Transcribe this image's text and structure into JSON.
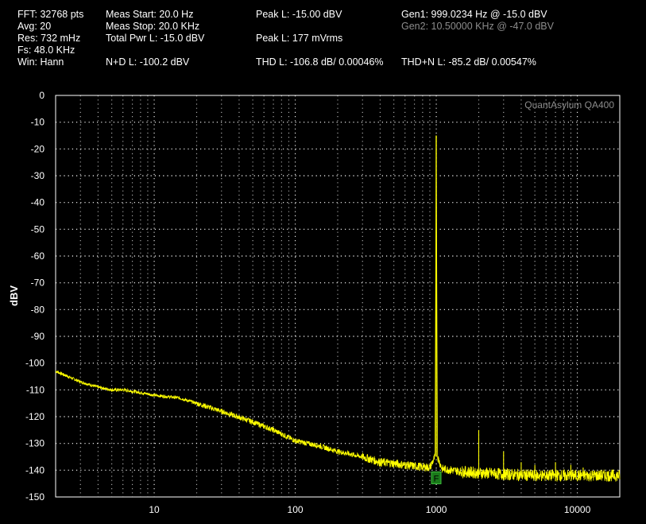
{
  "header": {
    "col1": [
      "FFT: 32768 pts",
      "Avg: 20",
      "Res: 732 mHz",
      "Fs: 48.0 KHz",
      "Win: Hann"
    ],
    "col2": [
      "Meas Start: 20.0 Hz",
      "Meas Stop: 20.0 KHz",
      "Total Pwr L: -15.0 dBV",
      "N+D L: -100.2 dBV"
    ],
    "peak_l_dbv": "Peak L: -15.00 dBV",
    "peak_l_vrms": "Peak L: 177 mVrms",
    "thd": "THD L: -106.8 dB/ 0.00046%",
    "gen1": "Gen1: 999.0234 Hz @ -15.0  dBV",
    "gen2": "Gen2: 10.50000 KHz @ -47.0  dBV",
    "thdn": "THD+N L: -85.2 dB/ 0.00547%"
  },
  "watermark": "QuantAsylum QA400",
  "marker_label": "F",
  "colors": {
    "trace": "#ffff00",
    "grid": "#ffffff",
    "background": "#000000",
    "marker": "#1a7a1a",
    "gen2_text": "#8c8c8c"
  },
  "chart_data": {
    "type": "line",
    "title": "",
    "xlabel": "",
    "ylabel": "dBV",
    "x_scale": "log",
    "xlim": [
      2,
      20000
    ],
    "ylim": [
      -150,
      0
    ],
    "x_ticks": [
      10,
      100,
      1000,
      10000
    ],
    "y_ticks": [
      0,
      -10,
      -20,
      -30,
      -40,
      -50,
      -60,
      -70,
      -80,
      -90,
      -100,
      -110,
      -120,
      -130,
      -140,
      -150
    ],
    "grid": true,
    "series": [
      {
        "x": [
          2,
          3,
          4,
          5,
          6,
          8,
          10,
          15,
          20,
          30,
          50,
          70,
          100,
          150,
          200,
          300,
          400,
          500,
          700,
          900,
          980,
          999,
          1020,
          1100,
          1500,
          2000,
          3000,
          5000,
          7000,
          10000,
          15000,
          20000
        ],
        "y": [
          -103,
          -107,
          -109,
          -110,
          -110,
          -111,
          -112,
          -113,
          -115,
          -118,
          -122,
          -125,
          -129,
          -131,
          -133,
          -135,
          -137,
          -137.5,
          -138.5,
          -139,
          -135,
          -15,
          -135,
          -139.5,
          -140.5,
          -141,
          -141.5,
          -142,
          -142,
          -142,
          -142,
          -142
        ]
      }
    ],
    "harmonics": [
      {
        "x": 2000,
        "y": -125
      },
      {
        "x": 3000,
        "y": -133
      },
      {
        "x": 4000,
        "y": -137
      },
      {
        "x": 5000,
        "y": -138
      },
      {
        "x": 7000,
        "y": -137
      },
      {
        "x": 9000,
        "y": -138
      },
      {
        "x": 11000,
        "y": -139
      }
    ],
    "marker": {
      "x": 999,
      "y": -143
    }
  }
}
